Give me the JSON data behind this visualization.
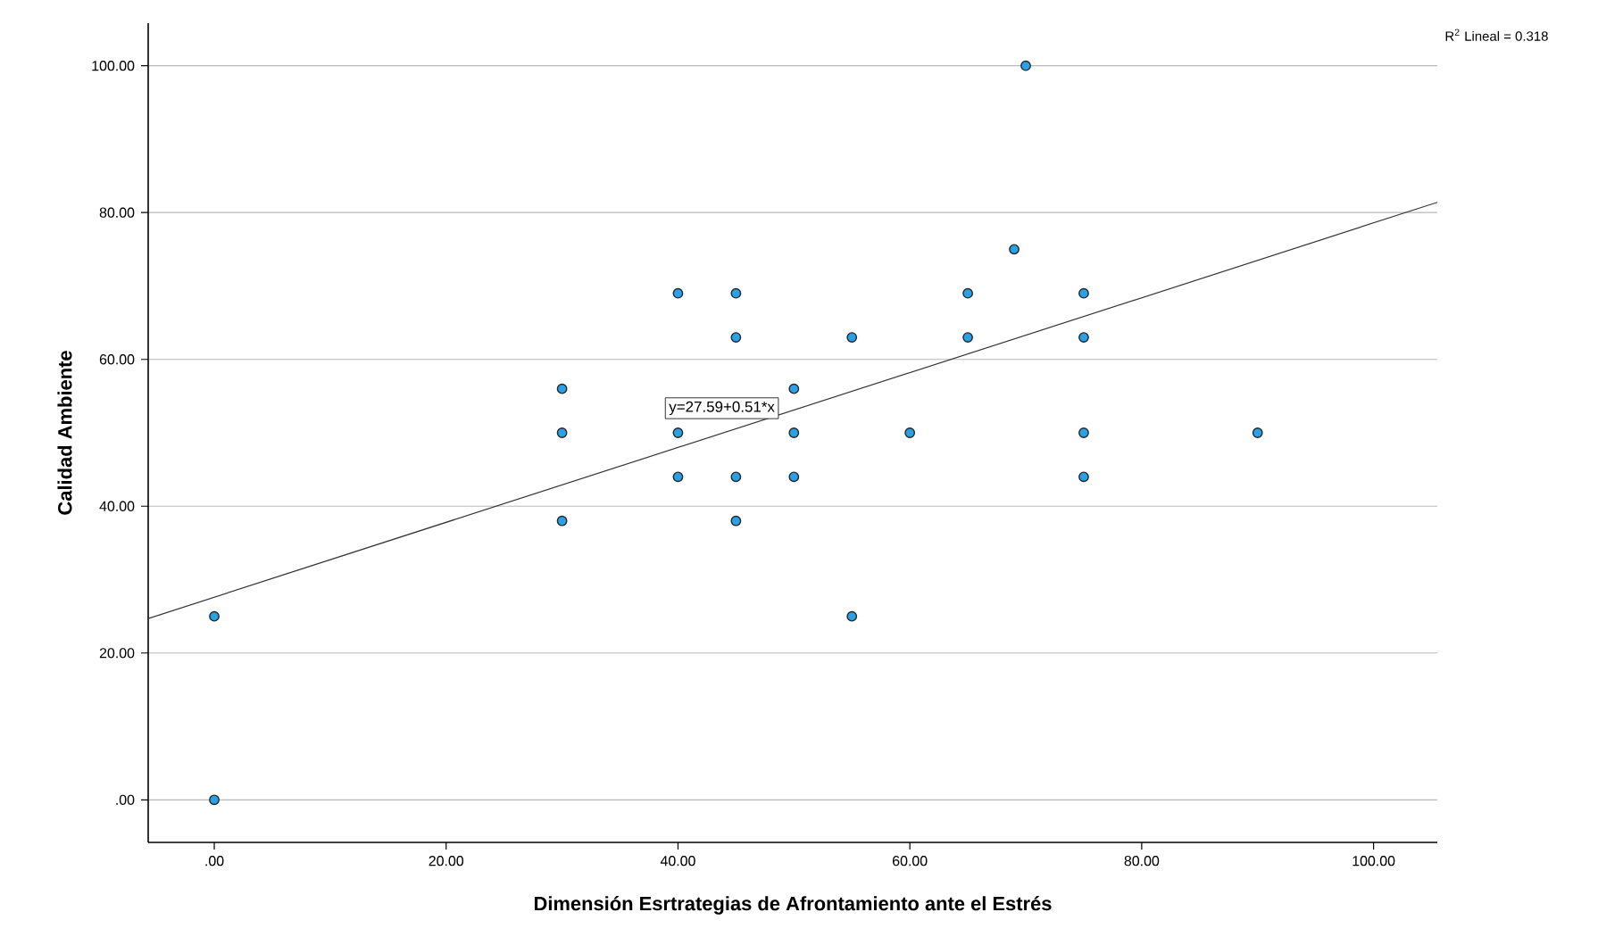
{
  "chart_data": {
    "type": "scatter",
    "xlabel": "Dimensión Esrtrategias de Afrontamiento ante el Estrés",
    "ylabel": "Calidad Ambiente",
    "xlim": [
      -5.7,
      105.5
    ],
    "ylim": [
      -5.8,
      105.8
    ],
    "xticks": [
      {
        "value": 0,
        "label": ".00"
      },
      {
        "value": 20,
        "label": "20.00"
      },
      {
        "value": 40,
        "label": "40.00"
      },
      {
        "value": 60,
        "label": "60.00"
      },
      {
        "value": 80,
        "label": "80.00"
      },
      {
        "value": 100,
        "label": "100.00"
      }
    ],
    "yticks": [
      {
        "value": 0,
        "label": ".00"
      },
      {
        "value": 20,
        "label": "20.00"
      },
      {
        "value": 40,
        "label": "40.00"
      },
      {
        "value": 60,
        "label": "60.00"
      },
      {
        "value": 80,
        "label": "80.00"
      },
      {
        "value": 100,
        "label": "100.00"
      }
    ],
    "grid": "y",
    "marker": "circle",
    "annotations": [
      "y=27.59+0.51*x",
      "R$^{2}$ Lineal = 0.318"
    ],
    "series": [
      {
        "color": "#2aa0e6",
        "x": [
          0,
          0,
          30,
          30,
          30,
          40,
          40,
          40,
          45,
          45,
          45,
          45,
          50,
          50,
          50,
          55,
          55,
          60,
          65,
          65,
          69,
          70,
          75,
          75,
          75,
          75,
          90
        ],
        "values": [
          0,
          25,
          56,
          50,
          38,
          69,
          50,
          44,
          69,
          63,
          44,
          38,
          56,
          50,
          44,
          63,
          25,
          50,
          69,
          63,
          75,
          100,
          69,
          63,
          50,
          44,
          50
        ]
      },
      {
        "type": "line",
        "marker": "none",
        "color": "#333333",
        "x": [
          -5.7,
          105.5
        ],
        "values": [
          24.7,
          81.4
        ]
      }
    ]
  }
}
